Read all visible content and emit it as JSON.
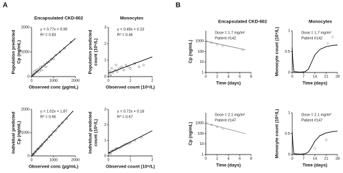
{
  "panel_labels": [
    "A",
    "B"
  ],
  "chart_data": [
    {
      "type": "scatter",
      "title": "Encapsulated CKD-602",
      "annotations": [
        "y = 0.77x + 9.99",
        "R² = 0.83"
      ],
      "ylabel": [
        "Population predicted",
        "Cp (ng/mL)"
      ],
      "xlabel": "Observed conc (µg/mL)",
      "xlim": [
        0,
        2000
      ],
      "ylim": [
        0,
        2000
      ],
      "xticks": [
        0,
        1000,
        2000
      ],
      "yticks": [
        0,
        1000,
        2000
      ],
      "log": false,
      "series": [
        {
          "kind": "points",
          "color": "#555555",
          "x": [
            50,
            80,
            120,
            150,
            200,
            250,
            300,
            350,
            400,
            450,
            500,
            600,
            650,
            700,
            800,
            900,
            1000,
            1100,
            1300,
            1500,
            1800
          ],
          "values": [
            90,
            60,
            200,
            120,
            250,
            180,
            300,
            220,
            380,
            260,
            420,
            500,
            400,
            560,
            600,
            700,
            720,
            880,
            1000,
            1150,
            1400
          ]
        },
        {
          "kind": "line",
          "color": "#000000",
          "x": [
            0,
            2000
          ],
          "values": [
            10,
            1550
          ]
        }
      ]
    },
    {
      "type": "scatter",
      "title": "Monocytes",
      "annotations": [
        "y = 0.49x + 0.23",
        "R² = 0.46"
      ],
      "ylabel": [
        "Population predicted",
        "count (10⁹/L)"
      ],
      "xlabel": "Observed count (10⁹/L)",
      "xlim": [
        0,
        2
      ],
      "ylim": [
        0,
        3
      ],
      "xticks": [
        0,
        1,
        2
      ],
      "yticks": [
        0,
        1,
        2,
        3
      ],
      "log": false,
      "series": [
        {
          "kind": "points",
          "color": "#555555",
          "x": [
            0.05,
            0.1,
            0.15,
            0.2,
            0.3,
            0.35,
            0.4,
            0.5,
            0.6,
            0.7,
            0.8,
            0.9,
            1.0,
            1.2,
            1.4,
            1.6
          ],
          "values": [
            0.3,
            0.1,
            0.5,
            0.25,
            0.4,
            0.7,
            0.3,
            0.5,
            0.6,
            0.4,
            0.7,
            0.6,
            0.5,
            0.8,
            0.6,
            0.7
          ]
        },
        {
          "kind": "line",
          "color": "#000000",
          "x": [
            0,
            2
          ],
          "values": [
            0.2,
            1.2
          ]
        }
      ]
    },
    {
      "type": "scatter",
      "annotations": [
        "y = 1.02x + 1.87",
        "R² = 0.96"
      ],
      "ylabel": [
        "Individual predicted",
        "Cp (ng/mL)"
      ],
      "xlabel": "Observed conc (µg/mL)",
      "xlim": [
        0,
        2000
      ],
      "ylim": [
        0,
        2000
      ],
      "xticks": [
        0,
        1000,
        2000
      ],
      "yticks": [
        0,
        1000,
        2000
      ],
      "log": false,
      "series": [
        {
          "kind": "points",
          "color": "#555555",
          "x": [
            40,
            80,
            120,
            160,
            200,
            260,
            300,
            350,
            400,
            450,
            500,
            600,
            700,
            800,
            900,
            1000,
            1100,
            1250,
            1400,
            1600
          ],
          "values": [
            60,
            70,
            110,
            180,
            190,
            280,
            310,
            330,
            420,
            440,
            520,
            610,
            690,
            830,
            900,
            1050,
            1080,
            1280,
            1420,
            1600
          ]
        },
        {
          "kind": "line",
          "color": "#000000",
          "x": [
            0,
            1900
          ],
          "values": [
            0,
            1940
          ]
        }
      ]
    },
    {
      "type": "scatter",
      "annotations": [
        "y = 0.72x + 0.18",
        "R² = 0.67"
      ],
      "ylabel": [
        "Individual predicted",
        "count (10⁹/L)"
      ],
      "xlabel": "Observed count (10⁹/L)",
      "xlim": [
        0,
        2
      ],
      "ylim": [
        0,
        3
      ],
      "xticks": [
        0,
        1,
        2
      ],
      "yticks": [
        0,
        1,
        2,
        3
      ],
      "log": false,
      "series": [
        {
          "kind": "points",
          "color": "#555555",
          "x": [
            0.05,
            0.1,
            0.15,
            0.2,
            0.3,
            0.35,
            0.4,
            0.5,
            0.6,
            0.7,
            0.8,
            0.9,
            1.0,
            1.2,
            1.5
          ],
          "values": [
            0.2,
            0.15,
            0.3,
            0.35,
            0.4,
            0.45,
            0.5,
            0.5,
            0.6,
            0.7,
            0.75,
            0.8,
            0.85,
            1.0,
            1.2
          ]
        },
        {
          "kind": "line",
          "color": "#000000",
          "x": [
            0,
            2
          ],
          "values": [
            0.18,
            1.62
          ]
        }
      ]
    },
    {
      "type": "scatter",
      "title": "Encapsulated CKD-602",
      "annotations": [
        "Dose = 1.7 mg/m²",
        "Patient #142"
      ],
      "ylabel": [
        "Cp (ng/mL)"
      ],
      "xlabel": "Time (days)",
      "xlim": [
        0,
        8
      ],
      "ylim": [
        1,
        10000
      ],
      "xticks": [
        0,
        2,
        4,
        6,
        8
      ],
      "yticks": [
        1,
        10,
        100,
        1000
      ],
      "log": true,
      "series": [
        {
          "kind": "points",
          "color": "#888888",
          "x": [
            0.1,
            1,
            2,
            3,
            6.5
          ],
          "values": [
            1000,
            700,
            500,
            350,
            150
          ]
        },
        {
          "kind": "line",
          "color": "#888888",
          "x": [
            0,
            7
          ],
          "values": [
            1000,
            150
          ]
        }
      ]
    },
    {
      "type": "scatter",
      "title": "Monocytes",
      "annotations": [
        "Dose = 1.7 mg/m²",
        "Patient #142"
      ],
      "ylabel": [
        "Monocyte count (10⁹/L)"
      ],
      "xlabel": "Time (days)",
      "xlim": [
        0,
        28
      ],
      "ylim": [
        0,
        1
      ],
      "xticks": [
        0,
        7,
        14,
        21,
        28
      ],
      "yticks": [
        0,
        0.5,
        1
      ],
      "log": false,
      "series": [
        {
          "kind": "points",
          "color": "#888888",
          "x": [
            22,
            25
          ],
          "values": [
            0.7,
            0.85
          ]
        },
        {
          "kind": "line",
          "color": "#000000",
          "x": [
            0,
            0.5,
            1,
            5,
            8,
            10,
            12,
            14,
            17,
            21,
            25,
            28
          ],
          "values": [
            0.6,
            0.2,
            0.02,
            0.01,
            0.02,
            0.08,
            0.25,
            0.42,
            0.55,
            0.62,
            0.65,
            0.66
          ]
        }
      ]
    },
    {
      "type": "scatter",
      "annotations": [
        "Dose = 2.1 mg/m²",
        "Patient #147"
      ],
      "ylabel": [
        "Cp (ng/mL)"
      ],
      "xlabel": "Time (days)",
      "xlim": [
        0,
        8
      ],
      "ylim": [
        1,
        10000
      ],
      "xticks": [
        0,
        2,
        4,
        6,
        8
      ],
      "yticks": [
        1,
        10,
        100,
        1000
      ],
      "log": true,
      "series": [
        {
          "kind": "points",
          "color": "#888888",
          "x": [
            0.1,
            1,
            2,
            3
          ],
          "values": [
            1000,
            700,
            450,
            300
          ]
        },
        {
          "kind": "line",
          "color": "#888888",
          "x": [
            0,
            7
          ],
          "values": [
            1000,
            100
          ]
        }
      ]
    },
    {
      "type": "scatter",
      "annotations": [
        "Dose = 2.1 mg/m²",
        "Patient #147"
      ],
      "ylabel": [
        "Monocyte count (10⁹/L)"
      ],
      "xlabel": "Time (days)",
      "xlim": [
        0,
        28
      ],
      "ylim": [
        0,
        1
      ],
      "xticks": [
        0,
        7,
        14,
        21,
        28
      ],
      "yticks": [
        0,
        0.5,
        1
      ],
      "log": false,
      "series": [
        {
          "kind": "points",
          "color": "#888888",
          "x": [
            14,
            21
          ],
          "values": [
            0.15,
            0.35
          ]
        },
        {
          "kind": "line",
          "color": "#000000",
          "x": [
            0,
            0.5,
            1,
            5,
            8,
            10,
            12,
            14,
            17,
            21,
            25,
            28
          ],
          "values": [
            0.55,
            0.2,
            0.02,
            0.01,
            0.02,
            0.06,
            0.18,
            0.32,
            0.45,
            0.52,
            0.55,
            0.56
          ]
        }
      ]
    }
  ]
}
